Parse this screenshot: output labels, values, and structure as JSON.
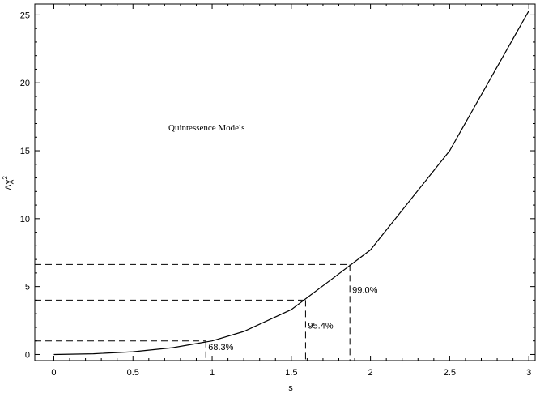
{
  "chart_data": {
    "type": "line",
    "xlabel": "s",
    "ylabel": "Δχ",
    "ylabel_sup": "2",
    "annotation": "Quintessence Models",
    "xlim": [
      -0.12,
      3.04
    ],
    "ylim": [
      -0.45,
      25.8
    ],
    "x_ticks": [
      0,
      0.5,
      1,
      1.5,
      2,
      2.5,
      3
    ],
    "x_tick_labels": [
      "0",
      "0.5",
      "1",
      "1.5",
      "2",
      "2.5",
      "3"
    ],
    "y_ticks": [
      0,
      5,
      10,
      15,
      20,
      25
    ],
    "y_tick_labels": [
      "0",
      "5",
      "10",
      "15",
      "20",
      "25"
    ],
    "grid": false,
    "series": [
      {
        "x": [
          0,
          0.25,
          0.5,
          0.75,
          1.0,
          1.2,
          1.5,
          1.75,
          2.0,
          2.5,
          3.0
        ],
        "y": [
          0,
          0.05,
          0.2,
          0.5,
          1.0,
          1.7,
          3.3,
          5.5,
          7.7,
          15.0,
          25.3
        ]
      }
    ],
    "confidence_levels": [
      {
        "label": "68.3%",
        "s": 0.96,
        "dchi2": 1.0
      },
      {
        "label": "95.4%",
        "s": 1.59,
        "dchi2": 4.0
      },
      {
        "label": "99.0%",
        "s": 1.87,
        "dchi2": 6.63
      }
    ]
  }
}
